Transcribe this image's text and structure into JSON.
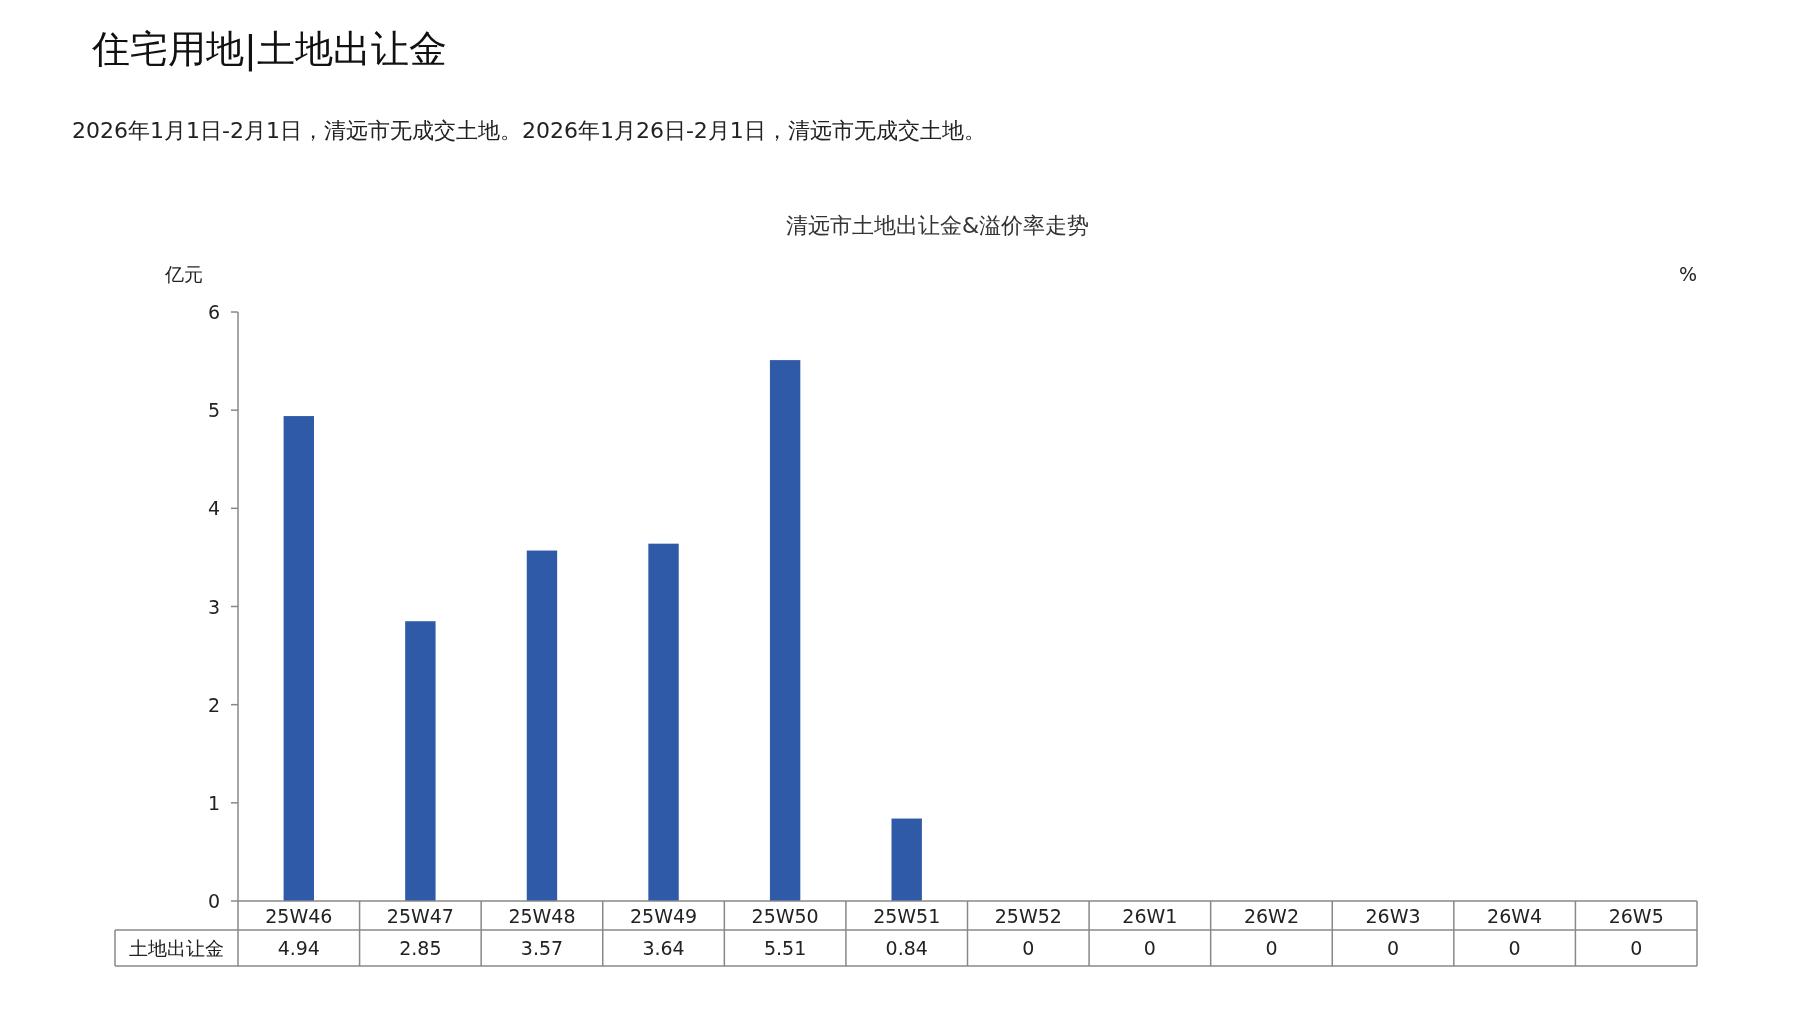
{
  "chart_data": {
    "type": "bar",
    "title": "住宅用地|土地出让金",
    "subtitle": "清远市土地出让金&溢价率走势",
    "annotations": [
      "2026年1月1日-2月1日，清远市无成交土地。2026年1月26日-2月1日，清远市无成交土地。"
    ],
    "ylabel": "亿元",
    "y2label": "%",
    "categories": [
      "25W46",
      "25W47",
      "25W48",
      "25W49",
      "25W50",
      "25W51",
      "25W52",
      "26W1",
      "26W2",
      "26W3",
      "26W4",
      "26W5"
    ],
    "series": [
      {
        "name": "土地出让金",
        "color": "#2e5aa8",
        "values": [
          4.94,
          2.85,
          3.57,
          3.64,
          5.51,
          0.84,
          0,
          0,
          0,
          0,
          0,
          0
        ]
      }
    ],
    "ylim": [
      0,
      6
    ],
    "yticks": [
      0,
      1,
      2,
      3,
      4,
      5,
      6
    ],
    "data_labels": true
  }
}
